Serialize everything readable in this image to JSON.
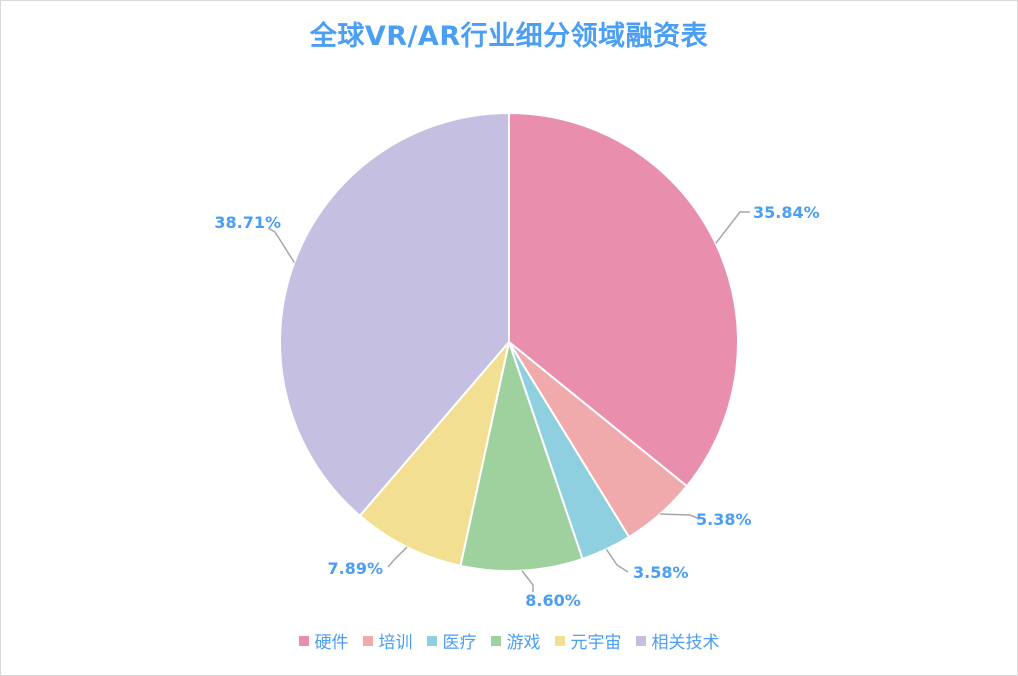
{
  "chart_data": {
    "type": "pie",
    "title": "全球VR/AR行业细分领域融资表",
    "categories": [
      "硬件",
      "培训",
      "医疗",
      "游戏",
      "元宇宙",
      "相关技术"
    ],
    "values": [
      35.84,
      5.38,
      3.58,
      8.6,
      7.89,
      38.71
    ],
    "labels": [
      "35.84%",
      "5.38%",
      "3.58%",
      "8.60%",
      "7.89%",
      "38.71%"
    ],
    "colors": [
      "#e98fad",
      "#f0aaab",
      "#8ecfe0",
      "#9fd19f",
      "#f3df91",
      "#c5c0e1"
    ],
    "legend_position": "bottom",
    "label_color": "#4a9ef3"
  }
}
